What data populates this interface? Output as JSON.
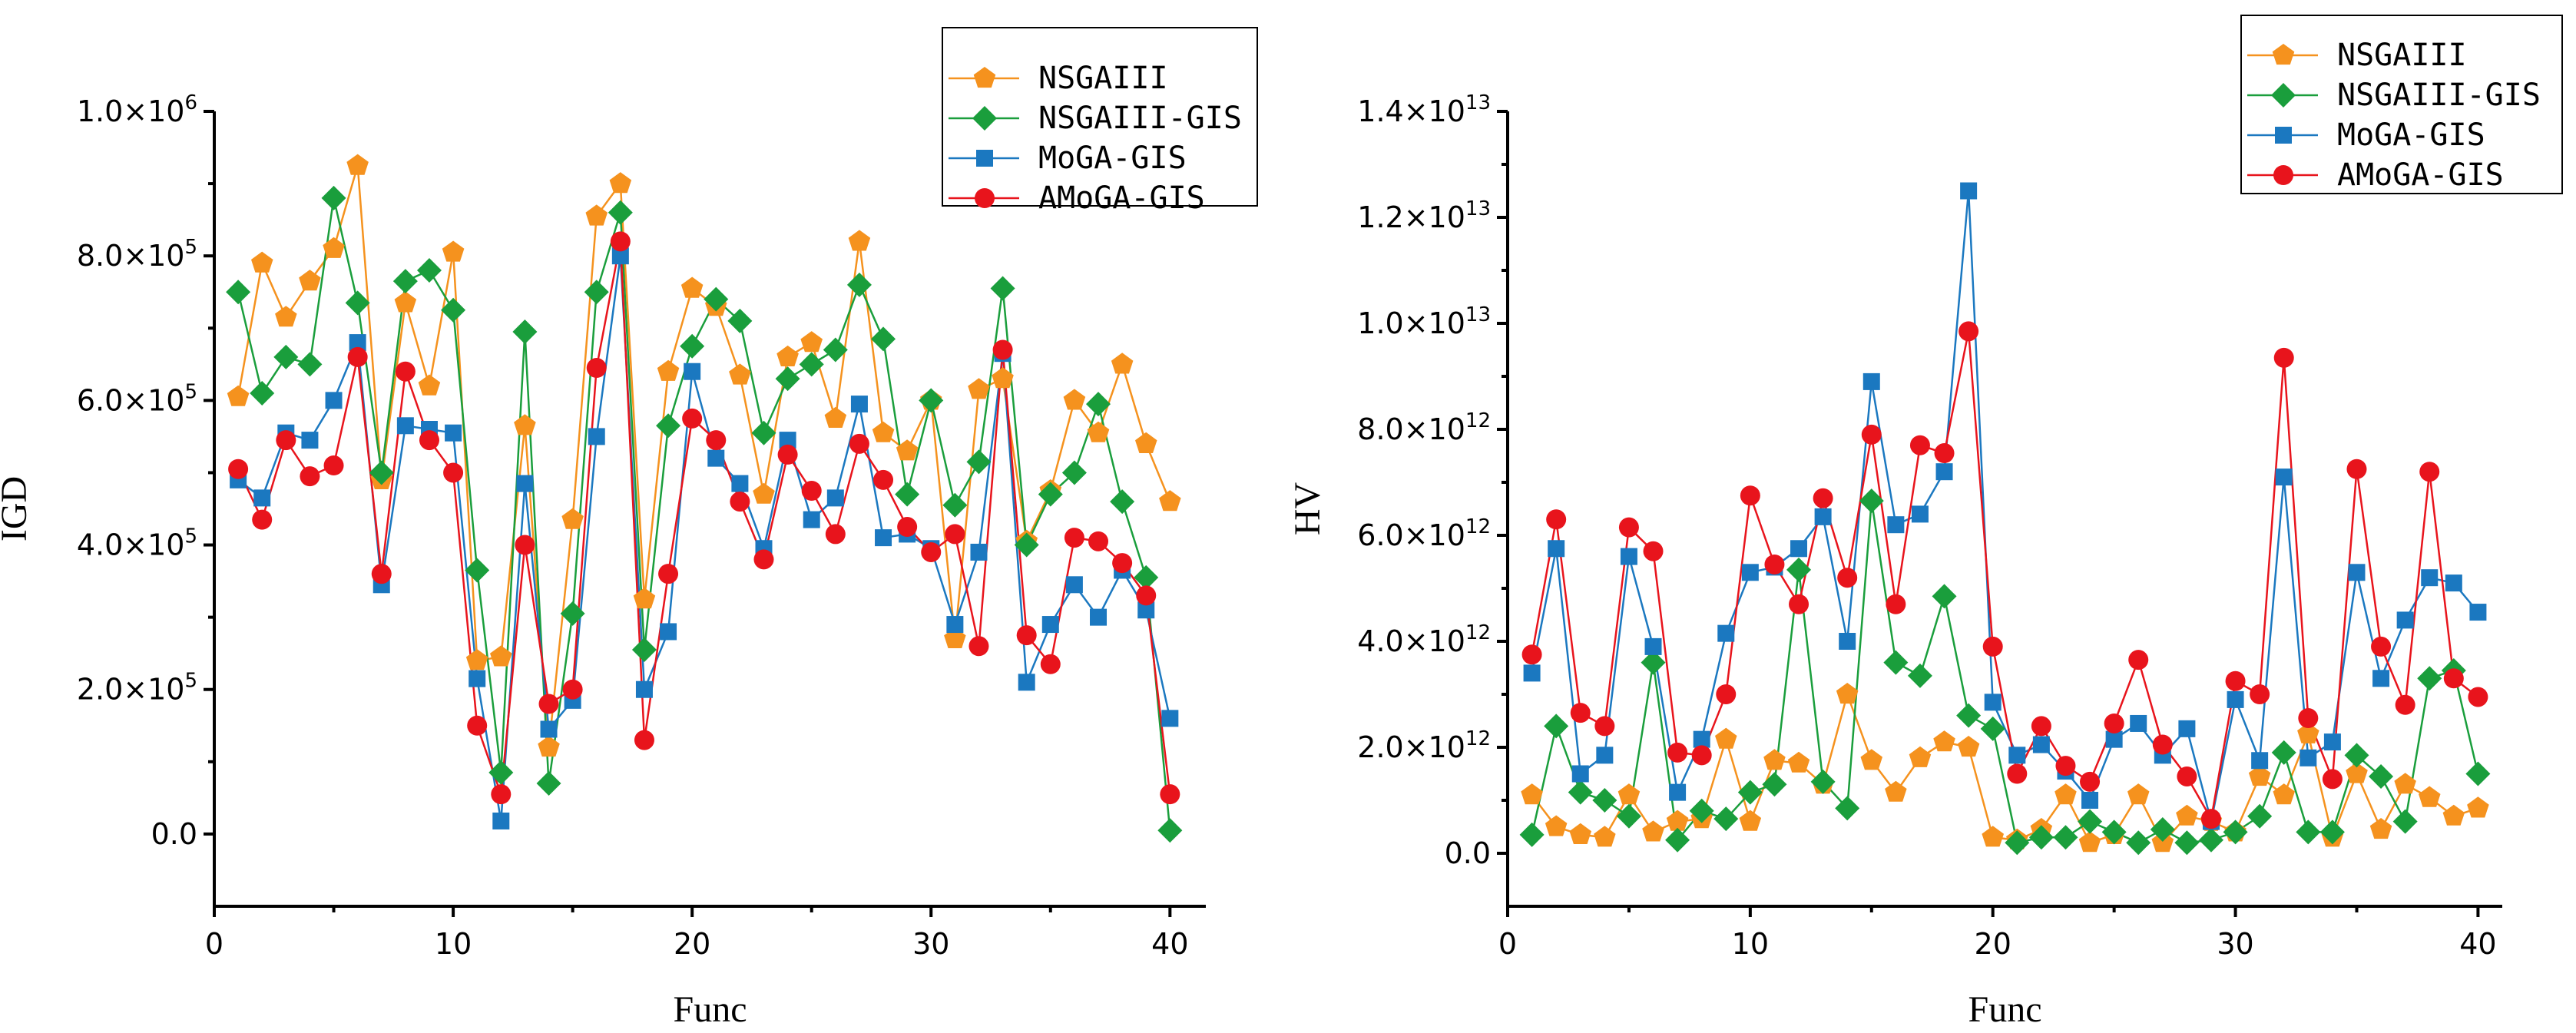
{
  "colors": {
    "NSGAIII": "#F5921E",
    "NSGAIII-GIS": "#1A9E3C",
    "MoGA-GIS": "#1B78C0",
    "AMoGA-GIS": "#E8141C"
  },
  "chart_data": [
    {
      "type": "line",
      "xlabel": "Func",
      "ylabel": "IGD",
      "xlim": [
        0,
        41.5
      ],
      "ylim": [
        -100000,
        1000000
      ],
      "xticks": [
        0,
        10,
        20,
        30,
        40
      ],
      "xtick_labels": [
        "0",
        "10",
        "20",
        "30",
        "40"
      ],
      "yticks": [
        0,
        200000,
        400000,
        600000,
        800000,
        1000000
      ],
      "ytick_labels": [
        {
          "mant": "0.0",
          "exp": ""
        },
        {
          "mant": "2.0×10",
          "exp": "5"
        },
        {
          "mant": "4.0×10",
          "exp": "5"
        },
        {
          "mant": "6.0×10",
          "exp": "5"
        },
        {
          "mant": "8.0×10",
          "exp": "5"
        },
        {
          "mant": "1.0×10",
          "exp": "6"
        }
      ],
      "legend_position": "top-right",
      "x": [
        1,
        2,
        3,
        4,
        5,
        6,
        7,
        8,
        9,
        10,
        11,
        12,
        13,
        14,
        15,
        16,
        17,
        18,
        19,
        20,
        21,
        22,
        23,
        24,
        25,
        26,
        27,
        28,
        29,
        30,
        31,
        32,
        33,
        34,
        35,
        36,
        37,
        38,
        39,
        40
      ],
      "series": [
        {
          "name": "NSGAIII",
          "marker": "pentagon",
          "values": [
            605000,
            790000,
            715000,
            765000,
            810000,
            925000,
            490000,
            735000,
            620000,
            805000,
            240000,
            245000,
            565000,
            120000,
            435000,
            855000,
            900000,
            325000,
            640000,
            755000,
            730000,
            635000,
            470000,
            660000,
            680000,
            575000,
            820000,
            555000,
            530000,
            600000,
            270000,
            615000,
            630000,
            405000,
            475000,
            600000,
            555000,
            650000,
            540000,
            460000
          ]
        },
        {
          "name": "NSGAIII-GIS",
          "marker": "diamond",
          "values": [
            750000,
            610000,
            660000,
            650000,
            880000,
            735000,
            500000,
            765000,
            780000,
            725000,
            365000,
            85000,
            695000,
            70000,
            305000,
            750000,
            860000,
            255000,
            565000,
            675000,
            740000,
            710000,
            555000,
            630000,
            650000,
            670000,
            760000,
            685000,
            470000,
            600000,
            455000,
            515000,
            755000,
            400000,
            470000,
            500000,
            595000,
            460000,
            355000,
            5000
          ]
        },
        {
          "name": "MoGA-GIS",
          "marker": "square",
          "values": [
            490000,
            465000,
            555000,
            545000,
            600000,
            680000,
            345000,
            565000,
            560000,
            555000,
            215000,
            18000,
            485000,
            145000,
            185000,
            550000,
            800000,
            200000,
            280000,
            640000,
            520000,
            485000,
            395000,
            545000,
            435000,
            465000,
            595000,
            410000,
            415000,
            395000,
            290000,
            390000,
            665000,
            210000,
            290000,
            345000,
            300000,
            365000,
            310000,
            160000
          ]
        },
        {
          "name": "AMoGA-GIS",
          "marker": "circle",
          "values": [
            505000,
            435000,
            545000,
            495000,
            510000,
            660000,
            360000,
            640000,
            545000,
            500000,
            150000,
            55000,
            400000,
            180000,
            200000,
            645000,
            820000,
            130000,
            360000,
            575000,
            545000,
            460000,
            380000,
            525000,
            475000,
            415000,
            540000,
            490000,
            425000,
            390000,
            415000,
            260000,
            670000,
            275000,
            235000,
            410000,
            405000,
            375000,
            330000,
            55000
          ]
        }
      ]
    },
    {
      "type": "line",
      "xlabel": "Func",
      "ylabel": "HV",
      "xlim": [
        0,
        41
      ],
      "ylim": [
        -1000000000000,
        14000000000000
      ],
      "xticks": [
        0,
        10,
        20,
        30,
        40
      ],
      "xtick_labels": [
        "0",
        "10",
        "20",
        "30",
        "40"
      ],
      "yticks": [
        0,
        2000000000000,
        4000000000000,
        6000000000000,
        8000000000000,
        10000000000000,
        12000000000000,
        14000000000000
      ],
      "ytick_labels": [
        {
          "mant": "0.0",
          "exp": ""
        },
        {
          "mant": "2.0×10",
          "exp": "12"
        },
        {
          "mant": "4.0×10",
          "exp": "12"
        },
        {
          "mant": "6.0×10",
          "exp": "12"
        },
        {
          "mant": "8.0×10",
          "exp": "12"
        },
        {
          "mant": "1.0×10",
          "exp": "13"
        },
        {
          "mant": "1.2×10",
          "exp": "13"
        },
        {
          "mant": "1.4×10",
          "exp": "13"
        }
      ],
      "legend_position": "top-right",
      "x": [
        1,
        2,
        3,
        4,
        5,
        6,
        7,
        8,
        9,
        10,
        11,
        12,
        13,
        14,
        15,
        16,
        17,
        18,
        19,
        20,
        21,
        22,
        23,
        24,
        25,
        26,
        27,
        28,
        29,
        30,
        31,
        32,
        33,
        34,
        35,
        36,
        37,
        38,
        39,
        40
      ],
      "series": [
        {
          "name": "NSGAIII",
          "marker": "pentagon",
          "values": [
            1100000000000.0,
            500000000000.0,
            350000000000.0,
            300000000000.0,
            1100000000000.0,
            400000000000.0,
            600000000000.0,
            650000000000.0,
            2150000000000.0,
            600000000000.0,
            1750000000000.0,
            1700000000000.0,
            1300000000000.0,
            3000000000000.0,
            1750000000000.0,
            1150000000000.0,
            1800000000000.0,
            2100000000000.0,
            2000000000000.0,
            300000000000.0,
            250000000000.0,
            450000000000.0,
            1100000000000.0,
            200000000000.0,
            350000000000.0,
            1100000000000.0,
            200000000000.0,
            700000000000.0,
            600000000000.0,
            400000000000.0,
            1450000000000.0,
            1100000000000.0,
            2250000000000.0,
            300000000000.0,
            1500000000000.0,
            450000000000.0,
            1300000000000.0,
            1050000000000.0,
            700000000000.0,
            850000000000.0
          ]
        },
        {
          "name": "NSGAIII-GIS",
          "marker": "diamond",
          "values": [
            350000000000.0,
            2400000000000.0,
            1150000000000.0,
            1000000000000.0,
            700000000000.0,
            3600000000000.0,
            250000000000.0,
            800000000000.0,
            650000000000.0,
            1150000000000.0,
            1300000000000.0,
            5350000000000.0,
            1350000000000.0,
            850000000000.0,
            6650000000000.0,
            3600000000000.0,
            3350000000000.0,
            4850000000000.0,
            2600000000000.0,
            2350000000000.0,
            200000000000.0,
            300000000000.0,
            300000000000.0,
            600000000000.0,
            400000000000.0,
            200000000000.0,
            450000000000.0,
            200000000000.0,
            250000000000.0,
            400000000000.0,
            700000000000.0,
            1900000000000.0,
            400000000000.0,
            400000000000.0,
            1850000000000.0,
            1450000000000.0,
            600000000000.0,
            3300000000000.0,
            3450000000000.0,
            1500000000000.0
          ]
        },
        {
          "name": "MoGA-GIS",
          "marker": "square",
          "values": [
            3400000000000.0,
            5750000000000.0,
            1500000000000.0,
            1850000000000.0,
            5600000000000.0,
            3900000000000.0,
            1150000000000.0,
            2150000000000.0,
            4150000000000.0,
            5300000000000.0,
            5400000000000.0,
            5750000000000.0,
            6350000000000.0,
            4000000000000.0,
            8900000000000.0,
            6200000000000.0,
            6400000000000.0,
            7200000000000.0,
            12500000000000.0,
            2850000000000.0,
            1850000000000.0,
            2050000000000.0,
            1550000000000.0,
            1000000000000.0,
            2150000000000.0,
            2450000000000.0,
            1850000000000.0,
            2350000000000.0,
            600000000000.0,
            2900000000000.0,
            1750000000000.0,
            7100000000000.0,
            1800000000000.0,
            2100000000000.0,
            5300000000000.0,
            3300000000000.0,
            4400000000000.0,
            5200000000000.0,
            5100000000000.0,
            4550000000000.0
          ]
        },
        {
          "name": "AMoGA-GIS",
          "marker": "circle",
          "values": [
            3750000000000.0,
            6300000000000.0,
            2650000000000.0,
            2400000000000.0,
            6150000000000.0,
            5700000000000.0,
            1900000000000.0,
            1850000000000.0,
            3000000000000.0,
            6750000000000.0,
            5450000000000.0,
            4700000000000.0,
            6700000000000.0,
            5200000000000.0,
            7900000000000.0,
            4700000000000.0,
            7700000000000.0,
            7550000000000.0,
            9850000000000.0,
            3900000000000.0,
            1500000000000.0,
            2400000000000.0,
            1650000000000.0,
            1350000000000.0,
            2450000000000.0,
            3650000000000.0,
            2050000000000.0,
            1450000000000.0,
            650000000000.0,
            3250000000000.0,
            3000000000000.0,
            9350000000000.0,
            2550000000000.0,
            1400000000000.0,
            7250000000000.0,
            3900000000000.0,
            2800000000000.0,
            7200000000000.0,
            3300000000000.0,
            2950000000000.0
          ]
        }
      ]
    }
  ]
}
